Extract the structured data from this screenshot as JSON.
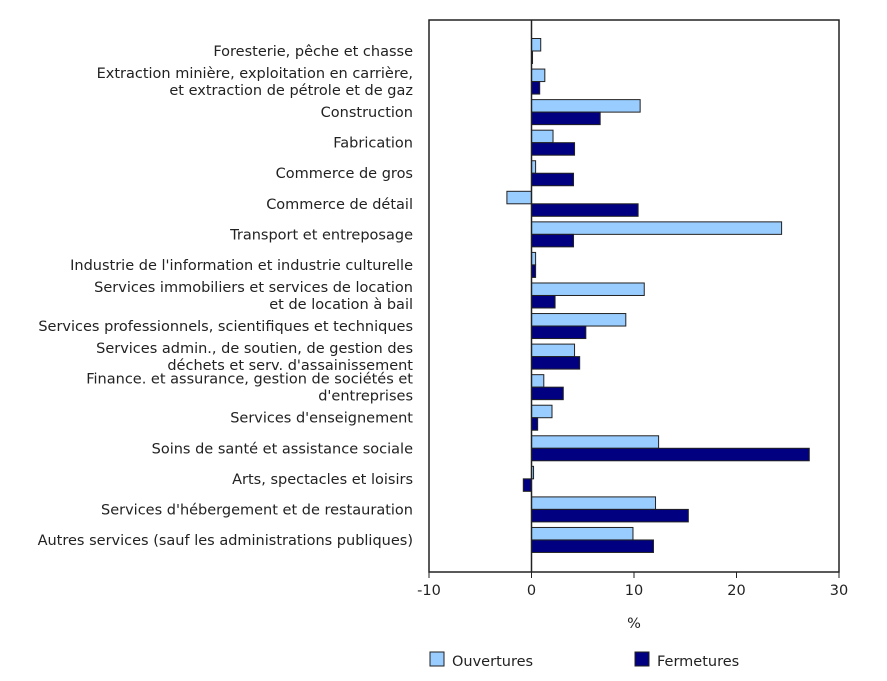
{
  "chart_data": {
    "type": "bar",
    "orientation": "horizontal",
    "categories": [
      [
        "Foresterie, pêche et chasse"
      ],
      [
        "Extraction minière, exploitation en carrière,",
        "et extraction de pétrole et de gaz"
      ],
      [
        "Construction"
      ],
      [
        "Fabrication"
      ],
      [
        "Commerce de gros"
      ],
      [
        "Commerce de détail"
      ],
      [
        "Transport et entreposage"
      ],
      [
        "Industrie de l'information et industrie culturelle"
      ],
      [
        "Services immobiliers et services de location",
        "et de location à bail"
      ],
      [
        "Services professionnels, scientifiques et techniques"
      ],
      [
        "Services admin., de soutien, de gestion des",
        "déchets et serv. d'assainissement"
      ],
      [
        "Finance. et assurance, gestion de sociétés et",
        "d'entreprises"
      ],
      [
        "Services d'enseignement"
      ],
      [
        "Soins de santé et assistance sociale"
      ],
      [
        "Arts, spectacles et loisirs"
      ],
      [
        "Services d'hébergement et de restauration"
      ],
      [
        "Autres services (sauf les administrations publiques)"
      ]
    ],
    "series": [
      {
        "name": "Ouvertures",
        "color": "#99ccff",
        "values": [
          0.9,
          1.3,
          10.6,
          2.1,
          0.4,
          -2.4,
          24.4,
          0.4,
          11.0,
          9.2,
          4.2,
          1.2,
          2.0,
          12.4,
          0.2,
          12.1,
          9.9
        ]
      },
      {
        "name": "Fermetures",
        "color": "#000080",
        "values": [
          0.1,
          0.8,
          6.7,
          4.2,
          4.1,
          10.4,
          4.1,
          0.4,
          2.3,
          5.3,
          4.7,
          3.1,
          0.6,
          27.1,
          -0.8,
          15.3,
          11.9
        ]
      }
    ],
    "xlabel": "%",
    "xlim": [
      -10,
      30
    ],
    "xticks": [
      "-10",
      "0",
      "10",
      "20",
      "30"
    ],
    "grid": false,
    "legend": "bottom"
  }
}
